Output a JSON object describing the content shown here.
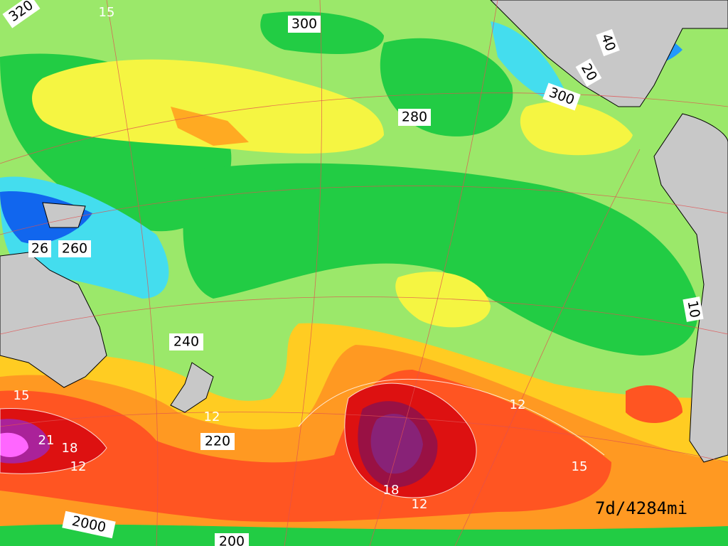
{
  "map": {
    "distance_labels": [
      "300",
      "280",
      "26",
      "260",
      "240",
      "220",
      "200",
      "2000",
      "320",
      "300",
      "40",
      "20",
      "10"
    ],
    "contour_labels": [
      "15",
      "15",
      "21",
      "18",
      "12",
      "12",
      "12",
      "15",
      "18",
      "12"
    ],
    "footer": "7d/4284mi"
  }
}
